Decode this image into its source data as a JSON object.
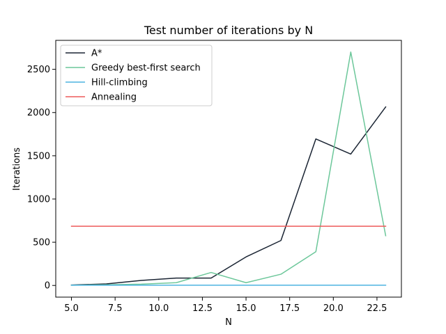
{
  "chart_data": {
    "type": "line",
    "title": "Test number of iterations by N",
    "xlabel": "N",
    "ylabel": "Iterations",
    "xlim": [
      4.1,
      23.9
    ],
    "ylim": [
      -135,
      2835
    ],
    "xticks": [
      5.0,
      7.5,
      10.0,
      12.5,
      15.0,
      17.5,
      20.0,
      22.5
    ],
    "xtick_labels": [
      "5.0",
      "7.5",
      "10.0",
      "12.5",
      "15.0",
      "17.5",
      "20.0",
      "22.5"
    ],
    "yticks": [
      0,
      500,
      1000,
      1500,
      2000,
      2500
    ],
    "ytick_labels": [
      "0",
      "500",
      "1000",
      "1500",
      "2000",
      "2500"
    ],
    "grid": false,
    "legend_position": "upper-left",
    "x": [
      5,
      7,
      9,
      11,
      13,
      15,
      17,
      19,
      21,
      23
    ],
    "series": [
      {
        "name": "A*",
        "color": "#1a2433",
        "values": [
          5,
          18,
          58,
          85,
          85,
          330,
          520,
          1695,
          1520,
          2065
        ]
      },
      {
        "name": "Greedy best-first search",
        "color": "#6cc79a",
        "values": [
          3,
          8,
          15,
          32,
          150,
          32,
          130,
          390,
          2700,
          575
        ]
      },
      {
        "name": "Hill-climbing",
        "color": "#4cb3e0",
        "values": [
          3,
          3,
          3,
          3,
          3,
          3,
          3,
          3,
          3,
          3
        ]
      },
      {
        "name": "Annealing",
        "color": "#ee5a5a",
        "values": [
          685,
          685,
          685,
          685,
          685,
          685,
          685,
          685,
          685,
          685
        ]
      }
    ]
  }
}
